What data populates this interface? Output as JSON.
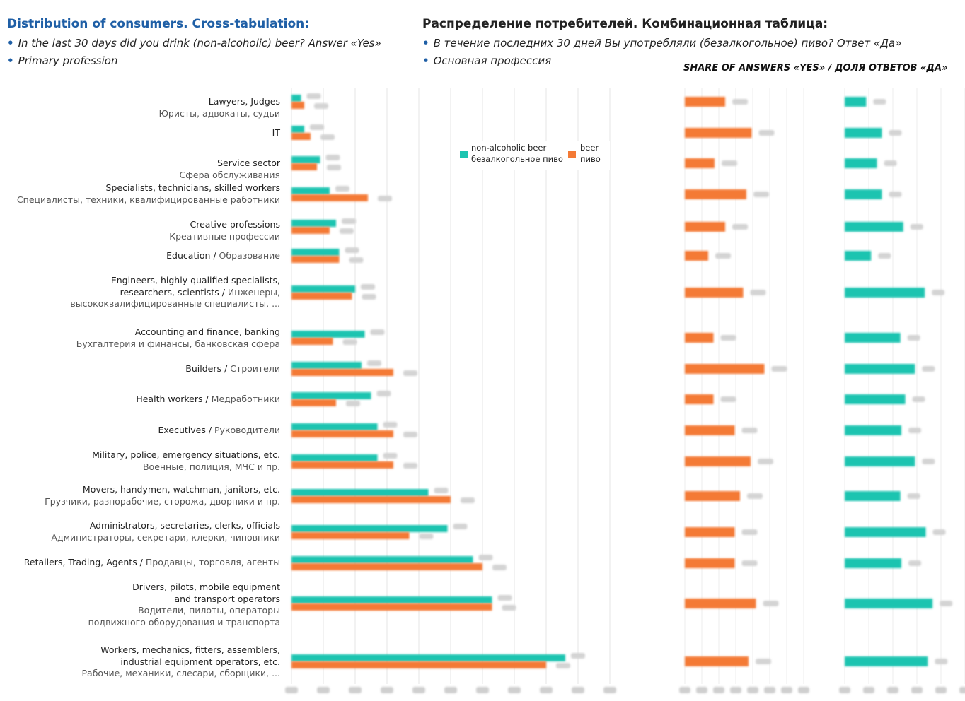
{
  "header": {
    "title_en": "Distribution of consumers. Cross-tabulation:",
    "bullet1_en": "In the last 30 days did you drink (non-alcoholic) beer? Answer «Yes»",
    "bullet2_en": "Primary profession",
    "title_ru": "Распределение потребителей. Комбинационная таблица:",
    "bullet1_ru": "В течение последних 30 дней Вы употребляли (безалкогольное) пиво? Ответ «Да»",
    "bullet2_ru": "Основная профессия",
    "bullet_mark": "•",
    "share_heading": "SHARE OF ANSWERS «YES» / ДОЛЯ ОТВЕТОВ «ДА»"
  },
  "legend": {
    "na_line1": "non-alcoholic beer",
    "na_line2": "безалкогольное пиво",
    "beer_line1": "beer",
    "beer_line2": "пиво"
  },
  "colors": {
    "non_alcoholic": "#1cc4b0",
    "beer": "#f47a35",
    "grid": "#e6e6e6",
    "title": "#1f5fa6"
  },
  "rows": [
    {
      "en": "Lawyers, Judges",
      "ru": "Юристы, адвокаты, судьи"
    },
    {
      "en": "IT",
      "ru": ""
    },
    {
      "en": "Service sector",
      "ru": "Сфера обслуживания"
    },
    {
      "en": "Specialists, technicians, skilled workers",
      "ru": "Специалисты, техники, квалифицированные работники"
    },
    {
      "en": "Creative professions",
      "ru": "Креативные профессии"
    },
    {
      "en": "Education / ",
      "ru": "Образование"
    },
    {
      "en": "Engineers, highly qualified specialists, researchers, scientists / ",
      "ru": "Инженеры, высококвалифицированные специалисты, ..."
    },
    {
      "en": "Accounting and finance, banking",
      "ru": "Бухгалтерия и финансы, банковская сфера"
    },
    {
      "en": "Builders / ",
      "ru": "Строители"
    },
    {
      "en": "Health workers / ",
      "ru": "Медработники"
    },
    {
      "en": "Executives / ",
      "ru": "Руководители"
    },
    {
      "en": "Military, police, emergency situations, etc.",
      "ru": "Военные, полиция, МЧС и пр."
    },
    {
      "en": "Movers, handymen, watchman, janitors, etc.",
      "ru": "Грузчики, разнорабочие, сторожа, дворники и пр."
    },
    {
      "en": "Administrators, secretaries, clerks, officials",
      "ru": "Администраторы, секретари, клерки, чиновники"
    },
    {
      "en": "Retailers, Trading, Agents / ",
      "ru": "Продавцы, торговля, агенты"
    },
    {
      "en": "Drivers, pilots, mobile equipment and transport operators",
      "ru": "Водители, пилоты, операторы подвижного оборудования и транспорта"
    },
    {
      "en": "Workers, mechanics, fitters, assemblers, industrial equipment operators, etc.",
      "ru": "Рабочие, механики, слесари, сборщики, ..."
    }
  ],
  "chart_data": [
    {
      "type": "bar",
      "orientation": "horizontal",
      "categories": [
        "Lawyers, Judges",
        "IT",
        "Service sector",
        "Specialists, technicians, skilled workers",
        "Creative professions",
        "Education",
        "Engineers, highly qualified specialists, researchers, scientists",
        "Accounting and finance, banking",
        "Builders",
        "Health workers",
        "Executives",
        "Military, police, emergency situations, etc.",
        "Movers, handymen, watchman, janitors, etc.",
        "Administrators, secretaries, clerks, officials",
        "Retailers, Trading, Agents",
        "Drivers, pilots, mobile equipment and transport operators",
        "Workers, mechanics, fitters, assemblers, industrial equipment operators, etc."
      ],
      "series": [
        {
          "name": "non-alcoholic beer / безалкогольное пиво",
          "values": [
            3,
            4,
            9,
            12,
            14,
            15,
            20,
            23,
            22,
            25,
            27,
            27,
            43,
            49,
            57,
            63,
            86
          ]
        },
        {
          "name": "beer / пиво",
          "values": [
            4,
            6,
            8,
            24,
            12,
            15,
            19,
            13,
            32,
            14,
            32,
            32,
            50,
            37,
            60,
            63,
            80
          ]
        },
        {
          "name": "share marker",
          "values": [
            null,
            null,
            null,
            null,
            null,
            null,
            null,
            null,
            null,
            null,
            null,
            null,
            null,
            null,
            null,
            null,
            null
          ]
        }
      ],
      "xlim": [
        0,
        100
      ],
      "tick_count": 11
    },
    {
      "type": "bar",
      "orientation": "horizontal",
      "title": "SHARE OF ANSWERS «YES» / ДОЛЯ ОТВЕТОВ «ДА»",
      "series": [
        {
          "name": "beer / пиво",
          "values": [
            38,
            63,
            28,
            58,
            38,
            22,
            55,
            27,
            75,
            27,
            47,
            62,
            52,
            47,
            47,
            67,
            60
          ]
        },
        {
          "name": "non-alcoholic beer / безалкогольное пиво",
          "values": [
            22,
            38,
            33,
            38,
            60,
            27,
            82,
            57,
            72,
            62,
            58,
            72,
            57,
            83,
            58,
            90,
            85
          ]
        }
      ]
    }
  ]
}
